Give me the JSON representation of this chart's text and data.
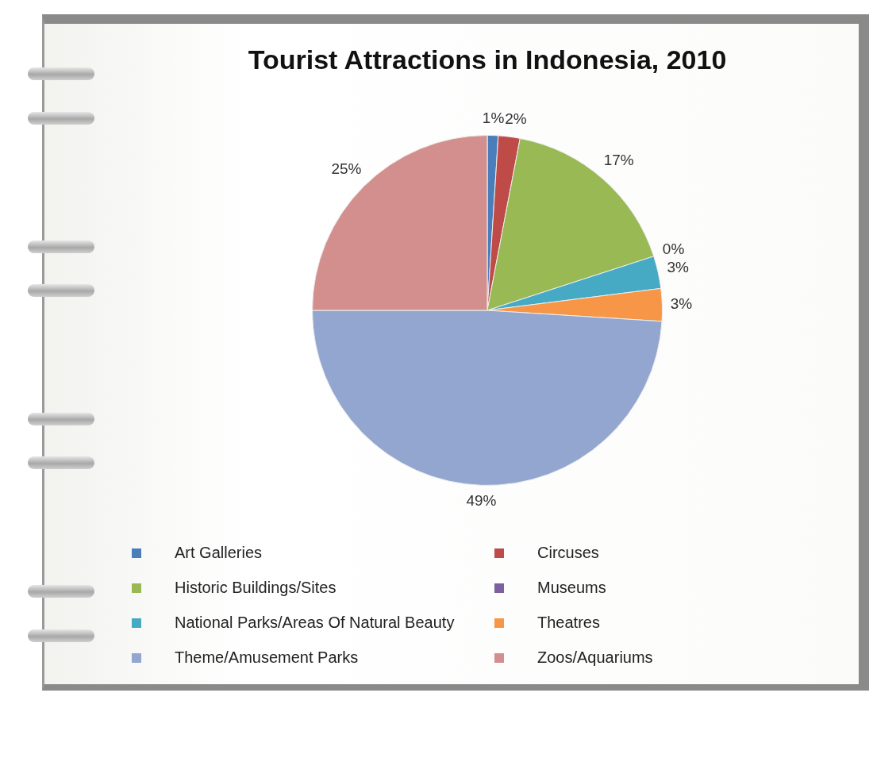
{
  "chart_data": {
    "type": "pie",
    "title": "Tourist Attractions in Indonesia, 2010",
    "categories": [
      "Art Galleries",
      "Circuses",
      "Historic Buildings/Sites",
      "Museums",
      "National Parks/Areas Of Natural Beauty",
      "Theatres",
      "Theme/Amusement Parks",
      "Zoos/Aquariums"
    ],
    "values": [
      1,
      2,
      17,
      0,
      3,
      3,
      49,
      25
    ],
    "colors": [
      "#4a7ebb",
      "#be4b48",
      "#98b954",
      "#7d60a0",
      "#46aac5",
      "#f79646",
      "#93a6cf",
      "#d38f8e"
    ],
    "value_labels": [
      "1%",
      "2%",
      "17%",
      "0%",
      "3%",
      "3%",
      "49%",
      "25%"
    ],
    "legend": "bottom"
  }
}
